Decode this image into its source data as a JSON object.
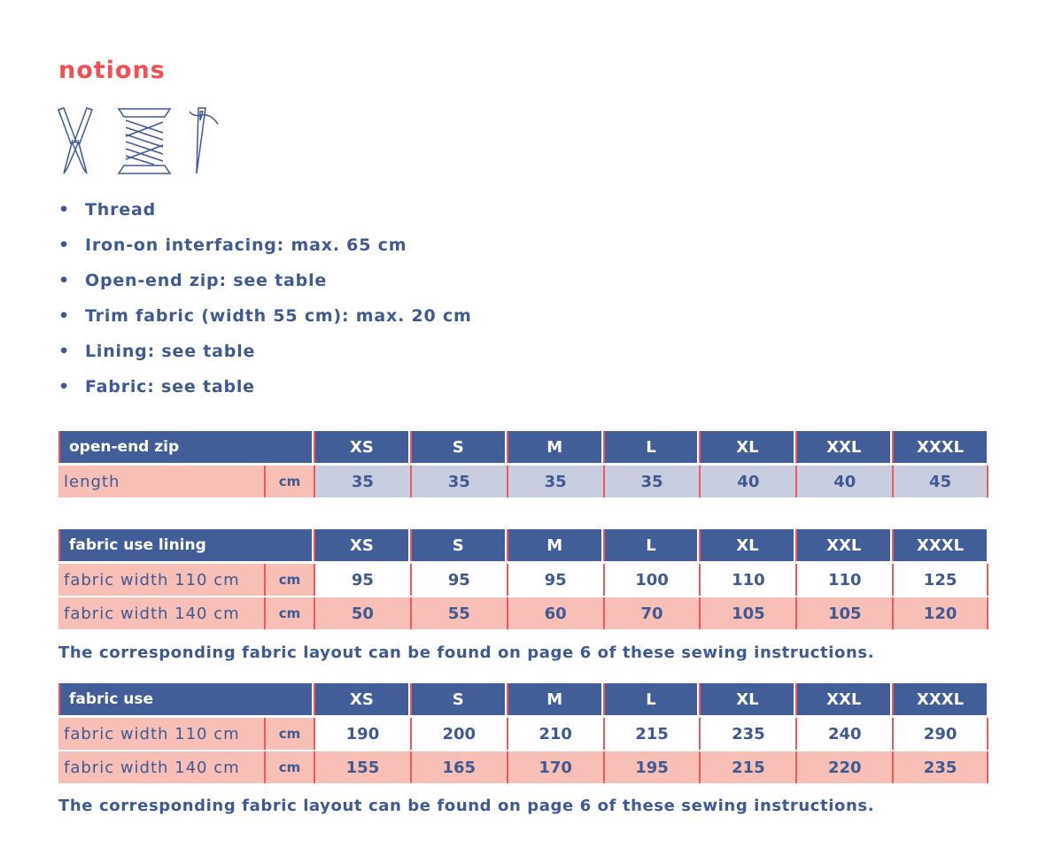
{
  "title": "notions",
  "icons": [
    "scissors-icon",
    "thread-spool-icon",
    "needle-icon"
  ],
  "items": [
    "Thread",
    "Iron-on interfacing: max. 65 cm",
    "Open-end zip: see table",
    "Trim fabric (width 55 cm): max. 20 cm",
    "Lining: see table",
    "Fabric: see table"
  ],
  "sizes": [
    "XS",
    "S",
    "M",
    "L",
    "XL",
    "XXL",
    "XXXL"
  ],
  "tables": [
    {
      "title": "open-end zip",
      "rows": [
        {
          "label": "length",
          "unit": "cm",
          "values": [
            "35",
            "35",
            "35",
            "35",
            "40",
            "40",
            "45"
          ]
        }
      ]
    },
    {
      "title": "fabric use lining",
      "rows": [
        {
          "label": "fabric width 110 cm",
          "unit": "cm",
          "values": [
            "95",
            "95",
            "95",
            "100",
            "110",
            "110",
            "125"
          ]
        },
        {
          "label": "fabric width 140 cm",
          "unit": "cm",
          "values": [
            "50",
            "55",
            "60",
            "70",
            "105",
            "105",
            "120"
          ]
        }
      ]
    },
    {
      "title": "fabric use",
      "rows": [
        {
          "label": "fabric width 110 cm",
          "unit": "cm",
          "values": [
            "190",
            "200",
            "210",
            "215",
            "235",
            "240",
            "290"
          ]
        },
        {
          "label": "fabric width 140 cm",
          "unit": "cm",
          "values": [
            "155",
            "165",
            "170",
            "195",
            "215",
            "220",
            "235"
          ]
        }
      ]
    }
  ],
  "note": "The corresponding fabric layout can be found on page 6 of these sewing instructions.",
  "colors": {
    "accent": "#ef4f55",
    "header": "#425e98",
    "pink": "#f8bfb6",
    "lavender": "#c9cde0",
    "text": "#3f5a93"
  }
}
